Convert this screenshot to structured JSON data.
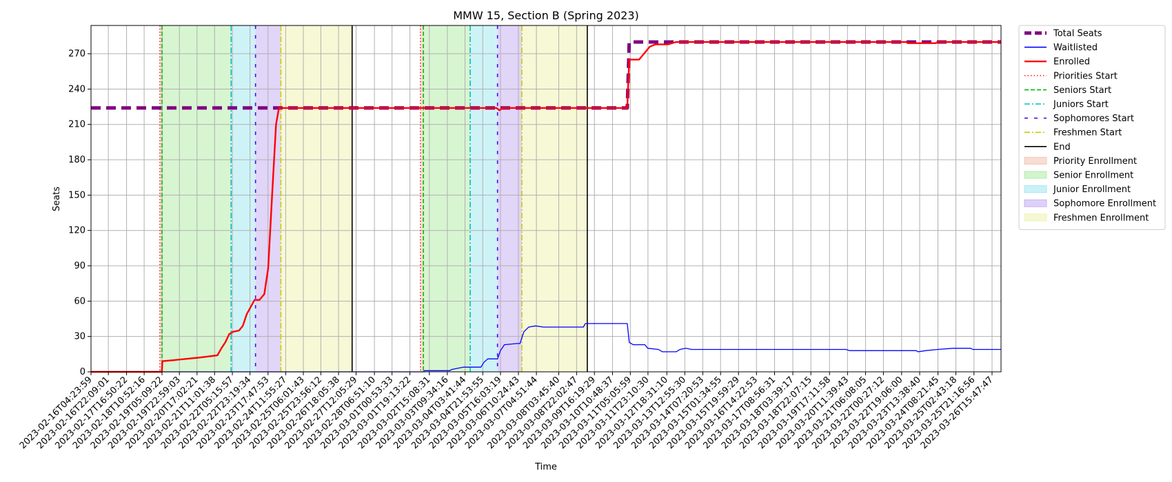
{
  "chart_data": {
    "type": "line",
    "title": "MMW 15, Section B (Spring 2023)",
    "xlabel": "Time",
    "ylabel": "Seats",
    "ylim": [
      0,
      294
    ],
    "yticks": [
      0,
      30,
      60,
      90,
      120,
      150,
      180,
      210,
      240,
      270
    ],
    "grid": true,
    "legend_position": "outside-right-top",
    "xlim": [
      "2023-02-16T04:23:59",
      "2023-03-27T01:00:00"
    ],
    "xticks": [
      "2023-02-16T04:23:59",
      "2023-02-16T22:09:01",
      "2023-02-17T16:50:22",
      "2023-02-18T10:52:16",
      "2023-02-19T05:09:22",
      "2023-02-19T22:59:03",
      "2023-02-20T17:02:21",
      "2023-02-21T11:01:38",
      "2023-02-22T05:15:57",
      "2023-02-22T23:19:34",
      "2023-02-23T17:47:53",
      "2023-02-24T11:55:27",
      "2023-02-25T06:01:43",
      "2023-02-25T23:56:12",
      "2023-02-26T18:05:38",
      "2023-02-27T12:05:29",
      "2023-02-28T06:51:10",
      "2023-03-01T00:53:33",
      "2023-03-01T19:13:22",
      "2023-03-02T15:08:31",
      "2023-03-03T09:34:16",
      "2023-03-04T03:41:44",
      "2023-03-04T21:53:55",
      "2023-03-05T16:03:19",
      "2023-03-06T10:24:43",
      "2023-03-07T04:51:44",
      "2023-03-08T03:45:40",
      "2023-03-08T22:02:47",
      "2023-03-09T16:19:29",
      "2023-03-10T10:48:37",
      "2023-03-11T05:05:59",
      "2023-03-11T23:10:30",
      "2023-03-12T18:31:10",
      "2023-03-13T12:55:30",
      "2023-03-14T07:20:53",
      "2023-03-15T01:34:55",
      "2023-03-15T19:59:29",
      "2023-03-16T14:22:53",
      "2023-03-17T08:56:31",
      "2023-03-18T03:39:17",
      "2023-03-18T22:07:15",
      "2023-03-19T17:11:58",
      "2023-03-20T11:39:43",
      "2023-03-21T06:08:05",
      "2023-03-22T00:27:12",
      "2023-03-22T19:06:00",
      "2023-03-23T13:38:40",
      "2023-03-24T08:21:45",
      "2023-03-25T02:43:18",
      "2023-03-25T21:16:56",
      "2023-03-26T15:47:47"
    ],
    "legend": [
      {
        "key": "total",
        "label": "Total Seats",
        "color": "#800080",
        "style": "thick-dash"
      },
      {
        "key": "wait",
        "label": "Waitlisted",
        "color": "#0000ff",
        "style": "line"
      },
      {
        "key": "enr",
        "label": "Enrolled",
        "color": "#ff0000",
        "style": "thick-line"
      },
      {
        "key": "prio",
        "label": "Priorities Start",
        "color": "#ff0000",
        "style": "dotted"
      },
      {
        "key": "sen",
        "label": "Seniors Start",
        "color": "#00bb00",
        "style": "dashed"
      },
      {
        "key": "jun",
        "label": "Juniors Start",
        "color": "#00bfbf",
        "style": "dashdot"
      },
      {
        "key": "soph",
        "label": "Sophomores Start",
        "color": "#5500ee",
        "style": "sparse"
      },
      {
        "key": "fresh",
        "label": "Freshmen Start",
        "color": "#cccc00",
        "style": "dashdot"
      },
      {
        "key": "end",
        "label": "End",
        "color": "#000000",
        "style": "line"
      },
      {
        "key": "pe",
        "label": "Priority Enrollment",
        "color": "#f4c7b8",
        "style": "patch"
      },
      {
        "key": "se",
        "label": "Senior Enrollment",
        "color": "#b6edab",
        "style": "patch"
      },
      {
        "key": "je",
        "label": "Junior Enrollment",
        "color": "#a6e9f0",
        "style": "patch"
      },
      {
        "key": "soe",
        "label": "Sophomore Enrollment",
        "color": "#c8b2f2",
        "style": "patch"
      },
      {
        "key": "fe",
        "label": "Freshmen Enrollment",
        "color": "#f0f3b5",
        "style": "patch"
      }
    ],
    "bands": [
      {
        "type": "Priority Enrollment",
        "start": "2023-02-19T03:00:00",
        "end": "2023-02-19T05:09:22",
        "color": "#f4c7b8"
      },
      {
        "type": "Senior Enrollment",
        "start": "2023-02-19T05:09:22",
        "end": "2023-02-22T04:00:00",
        "color": "#b6edab"
      },
      {
        "type": "Junior Enrollment",
        "start": "2023-02-22T04:00:00",
        "end": "2023-02-23T05:00:00",
        "color": "#a6e9f0"
      },
      {
        "type": "Sophomore Enrollment",
        "start": "2023-02-23T05:00:00",
        "end": "2023-02-24T07:00:00",
        "color": "#c8b2f2"
      },
      {
        "type": "Freshmen Enrollment",
        "start": "2023-02-24T07:00:00",
        "end": "2023-02-27T08:00:00",
        "color": "#f0f3b5"
      },
      {
        "type": "Priority Enrollment",
        "start": "2023-03-02T06:00:00",
        "end": "2023-03-02T09:00:00",
        "color": "#f4c7b8"
      },
      {
        "type": "Senior Enrollment",
        "start": "2023-03-02T09:00:00",
        "end": "2023-03-04T09:00:00",
        "color": "#b6edab"
      },
      {
        "type": "Junior Enrollment",
        "start": "2023-03-04T09:00:00",
        "end": "2023-03-05T13:00:00",
        "color": "#a6e9f0"
      },
      {
        "type": "Sophomore Enrollment",
        "start": "2023-03-05T13:00:00",
        "end": "2023-03-06T14:00:00",
        "color": "#c8b2f2"
      },
      {
        "type": "Freshmen Enrollment",
        "start": "2023-03-06T14:00:00",
        "end": "2023-03-09T09:00:00",
        "color": "#f0f3b5"
      }
    ],
    "vlines": [
      {
        "type": "prio",
        "at": "2023-02-19T03:00:00"
      },
      {
        "type": "sen",
        "at": "2023-02-19T05:09:22"
      },
      {
        "type": "jun",
        "at": "2023-02-22T04:00:00"
      },
      {
        "type": "soph",
        "at": "2023-02-23T05:00:00"
      },
      {
        "type": "fresh",
        "at": "2023-02-24T07:00:00"
      },
      {
        "type": "end",
        "at": "2023-02-27T08:00:00"
      },
      {
        "type": "prio",
        "at": "2023-03-02T06:00:00"
      },
      {
        "type": "sen",
        "at": "2023-03-02T09:00:00"
      },
      {
        "type": "jun",
        "at": "2023-03-04T09:00:00"
      },
      {
        "type": "soph",
        "at": "2023-03-05T13:00:00"
      },
      {
        "type": "fresh",
        "at": "2023-03-06T14:00:00"
      },
      {
        "type": "end",
        "at": "2023-03-09T09:00:00"
      }
    ],
    "series": [
      {
        "key": "total",
        "name": "Total Seats",
        "points": [
          [
            "2023-02-16T04:23:59",
            224
          ],
          [
            "2023-03-11T02:00:00",
            224
          ],
          [
            "2023-03-11T04:00:00",
            280
          ],
          [
            "2023-03-27T01:00:00",
            280
          ]
        ]
      },
      {
        "key": "wait",
        "name": "Waitlisted",
        "points": [
          [
            "2023-02-16T04:23:59",
            0
          ],
          [
            "2023-03-02T09:00:00",
            0
          ],
          [
            "2023-03-02T10:00:00",
            1
          ],
          [
            "2023-03-03T12:00:00",
            1
          ],
          [
            "2023-03-03T14:00:00",
            2
          ],
          [
            "2023-03-03T20:00:00",
            3
          ],
          [
            "2023-03-04T02:00:00",
            4
          ],
          [
            "2023-03-04T20:00:00",
            4
          ],
          [
            "2023-03-04T23:00:00",
            8
          ],
          [
            "2023-03-05T03:00:00",
            11
          ],
          [
            "2023-03-05T13:00:00",
            11
          ],
          [
            "2023-03-05T16:00:00",
            18
          ],
          [
            "2023-03-05T20:00:00",
            23
          ],
          [
            "2023-03-06T09:00:00",
            24
          ],
          [
            "2023-03-06T12:00:00",
            24
          ],
          [
            "2023-03-06T16:00:00",
            34
          ],
          [
            "2023-03-06T21:00:00",
            38
          ],
          [
            "2023-03-07T04:00:00",
            39
          ],
          [
            "2023-03-07T12:00:00",
            38
          ],
          [
            "2023-03-09T05:00:00",
            38
          ],
          [
            "2023-03-09T07:00:00",
            41
          ],
          [
            "2023-03-11T02:00:00",
            41
          ],
          [
            "2023-03-11T04:00:00",
            25
          ],
          [
            "2023-03-11T08:00:00",
            23
          ],
          [
            "2023-03-11T20:00:00",
            23
          ],
          [
            "2023-03-11T23:00:00",
            20
          ],
          [
            "2023-03-12T10:00:00",
            19
          ],
          [
            "2023-03-12T14:00:00",
            17
          ],
          [
            "2023-03-13T04:00:00",
            17
          ],
          [
            "2023-03-13T08:00:00",
            19
          ],
          [
            "2023-03-13T14:00:00",
            20
          ],
          [
            "2023-03-13T20:00:00",
            19
          ],
          [
            "2023-03-20T10:00:00",
            19
          ],
          [
            "2023-03-20T14:00:00",
            18
          ],
          [
            "2023-03-23T10:00:00",
            18
          ],
          [
            "2023-03-23T12:00:00",
            17
          ],
          [
            "2023-03-23T20:00:00",
            18
          ],
          [
            "2023-03-24T08:00:00",
            19
          ],
          [
            "2023-03-25T00:00:00",
            20
          ],
          [
            "2023-03-25T18:00:00",
            20
          ],
          [
            "2023-03-25T20:00:00",
            19
          ],
          [
            "2023-03-27T01:00:00",
            19
          ]
        ]
      },
      {
        "key": "enr",
        "name": "Enrolled",
        "points": [
          [
            "2023-02-16T04:23:59",
            0
          ],
          [
            "2023-02-19T05:00:00",
            0
          ],
          [
            "2023-02-19T05:30:00",
            9
          ],
          [
            "2023-02-19T18:00:00",
            10
          ],
          [
            "2023-02-20T06:00:00",
            11
          ],
          [
            "2023-02-20T18:00:00",
            12
          ],
          [
            "2023-02-21T04:00:00",
            13
          ],
          [
            "2023-02-21T14:00:00",
            14
          ],
          [
            "2023-02-21T18:00:00",
            20
          ],
          [
            "2023-02-21T22:00:00",
            25
          ],
          [
            "2023-02-22T02:00:00",
            32
          ],
          [
            "2023-02-22T06:00:00",
            34
          ],
          [
            "2023-02-22T12:00:00",
            35
          ],
          [
            "2023-02-22T16:00:00",
            39
          ],
          [
            "2023-02-22T20:00:00",
            49
          ],
          [
            "2023-02-23T00:00:00",
            55
          ],
          [
            "2023-02-23T04:00:00",
            61
          ],
          [
            "2023-02-23T09:00:00",
            61
          ],
          [
            "2023-02-23T14:00:00",
            66
          ],
          [
            "2023-02-23T18:00:00",
            88
          ],
          [
            "2023-02-23T22:00:00",
            150
          ],
          [
            "2023-02-24T02:00:00",
            210
          ],
          [
            "2023-02-24T05:00:00",
            224
          ],
          [
            "2023-03-05T12:00:00",
            224
          ],
          [
            "2023-03-05T15:00:00",
            222
          ],
          [
            "2023-03-05T18:00:00",
            224
          ],
          [
            "2023-03-11T02:00:00",
            224
          ],
          [
            "2023-03-11T04:00:00",
            265
          ],
          [
            "2023-03-11T14:00:00",
            265
          ],
          [
            "2023-03-11T19:00:00",
            270
          ],
          [
            "2023-03-12T01:00:00",
            276
          ],
          [
            "2023-03-12T07:00:00",
            278
          ],
          [
            "2023-03-12T20:00:00",
            278
          ],
          [
            "2023-03-13T04:00:00",
            280
          ],
          [
            "2023-03-23T00:00:00",
            280
          ],
          [
            "2023-03-23T02:00:00",
            279
          ],
          [
            "2023-03-24T06:00:00",
            279
          ],
          [
            "2023-03-24T08:00:00",
            280
          ],
          [
            "2023-03-27T01:00:00",
            280
          ]
        ]
      }
    ]
  }
}
